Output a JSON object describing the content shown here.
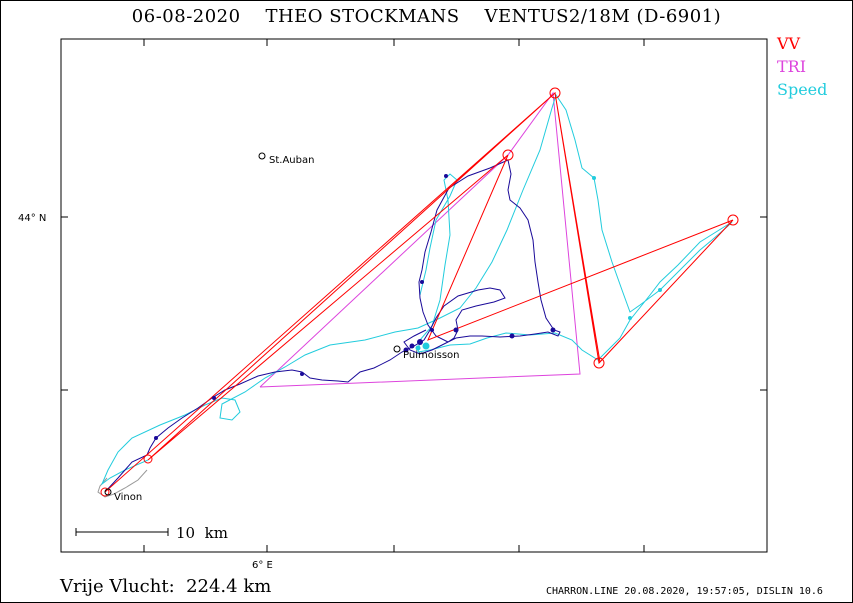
{
  "title": {
    "date": "06-08-2020",
    "pilot": "THEO STOCKMANS",
    "glider": "VENTUS2/18M (D-6901)"
  },
  "legend": [
    {
      "label": "VV",
      "color": "#ff0000"
    },
    {
      "label": "TRI",
      "color": "#dd44dd"
    },
    {
      "label": "Speed",
      "color": "#22ccdd"
    }
  ],
  "map": {
    "lat_label": "44° N",
    "lon_label": "6° E",
    "scale_label": "10  km",
    "places": [
      {
        "name": "St.Auban"
      },
      {
        "name": "Puimoisson"
      },
      {
        "name": "Vinon"
      }
    ],
    "colors": {
      "track_main": "#1a0a99",
      "track_speed": "#22ccdd",
      "vv": "#ff0000",
      "tri": "#dd44dd",
      "track_grey": "#999999"
    }
  },
  "footer": {
    "distance": "Vrije Vlucht:  224.4 km",
    "credit": "CHARRON.LINE 20.08.2020, 19:57:05, DISLIN 10.6"
  }
}
